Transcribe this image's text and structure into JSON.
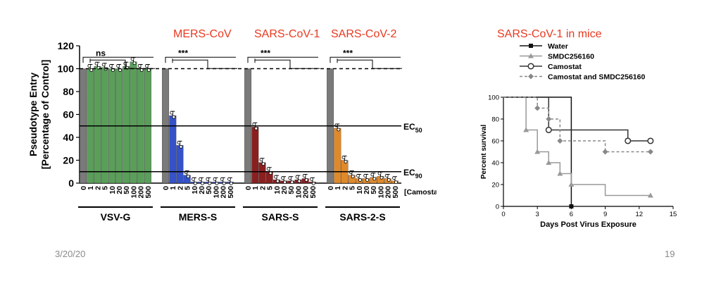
{
  "titles": {
    "mers": "MERS-CoV",
    "sars1": "SARS-CoV-1",
    "sars2": "SARS-CoV-2",
    "mice": "SARS-CoV-1 in mice"
  },
  "footer": {
    "date": "3/20/20",
    "page": "19"
  },
  "chart_data": [
    {
      "type": "bar",
      "title": "",
      "ylabel": "Pseudotype Entry [Percentage of Control]",
      "xlabel": "[Camostat, μM]",
      "ylim": [
        0,
        120
      ],
      "yticks": [
        "0",
        "20",
        "40",
        "60",
        "80",
        "100",
        "120"
      ],
      "categories": [
        "0",
        "1",
        "2",
        "5",
        "10",
        "20",
        "50",
        "100",
        "200",
        "500"
      ],
      "reference_lines": [
        {
          "label_main": "EC",
          "label_sub": "50",
          "value": 50
        },
        {
          "label_main": "EC",
          "label_sub": "90",
          "value": 10
        }
      ],
      "control_line": 100,
      "groups": [
        {
          "name": "VSV-G",
          "color": "#5a9e5a",
          "significance": "ns",
          "values": [
            100,
            100,
            102,
            101,
            100,
            100,
            102,
            106,
            100,
            100
          ]
        },
        {
          "name": "MERS-S",
          "color": "#3552c9",
          "significance": "***",
          "values": [
            100,
            59,
            33,
            7,
            1,
            1,
            1,
            1,
            1,
            1
          ]
        },
        {
          "name": "SARS-S",
          "color": "#8a1f1f",
          "significance": "***",
          "values": [
            100,
            49,
            18,
            10,
            3,
            2,
            2,
            3,
            4,
            1
          ]
        },
        {
          "name": "SARS-2-S",
          "color": "#e0892b",
          "significance": "***",
          "values": [
            100,
            48,
            20,
            7,
            4,
            4,
            5,
            6,
            4,
            2
          ]
        }
      ]
    },
    {
      "type": "line",
      "title": "SARS-CoV-1 in mice",
      "xlabel": "Days Post Virus Exposure",
      "ylabel": "Percent survival",
      "xlim": [
        0,
        15
      ],
      "ylim": [
        0,
        100
      ],
      "xticks": [
        "0",
        "3",
        "6",
        "9",
        "12",
        "15"
      ],
      "yticks": [
        "0",
        "20",
        "40",
        "60",
        "80",
        "100"
      ],
      "series": [
        {
          "name": "Water",
          "marker": "square",
          "color": "#111111",
          "dash": false,
          "steps": [
            [
              0,
              100
            ],
            [
              6,
              0
            ]
          ],
          "markers": [
            [
              6,
              0
            ]
          ]
        },
        {
          "name": "SMDC256160",
          "marker": "triangle",
          "color": "#999999",
          "dash": false,
          "steps": [
            [
              0,
              100
            ],
            [
              2,
              70
            ],
            [
              3,
              50
            ],
            [
              4,
              40
            ],
            [
              5,
              30
            ],
            [
              6,
              20
            ],
            [
              9,
              10
            ],
            [
              13,
              10
            ]
          ],
          "markers": [
            [
              2,
              70
            ],
            [
              3,
              50
            ],
            [
              4,
              40
            ],
            [
              5,
              30
            ],
            [
              6,
              20
            ],
            [
              13,
              10
            ]
          ]
        },
        {
          "name": "Camostat",
          "marker": "circle",
          "color": "#333333",
          "dash": false,
          "steps": [
            [
              0,
              100
            ],
            [
              4,
              70
            ],
            [
              11,
              60
            ],
            [
              13,
              60
            ]
          ],
          "markers": [
            [
              4,
              70
            ],
            [
              11,
              60
            ],
            [
              13,
              60
            ]
          ]
        },
        {
          "name": "Camostat and SMDC256160",
          "marker": "diamond",
          "color": "#888888",
          "dash": true,
          "steps": [
            [
              0,
              100
            ],
            [
              3,
              90
            ],
            [
              4,
              80
            ],
            [
              5,
              60
            ],
            [
              9,
              50
            ],
            [
              13,
              50
            ]
          ],
          "markers": [
            [
              3,
              90
            ],
            [
              4,
              80
            ],
            [
              5,
              60
            ],
            [
              9,
              50
            ],
            [
              13,
              50
            ]
          ]
        }
      ]
    }
  ]
}
